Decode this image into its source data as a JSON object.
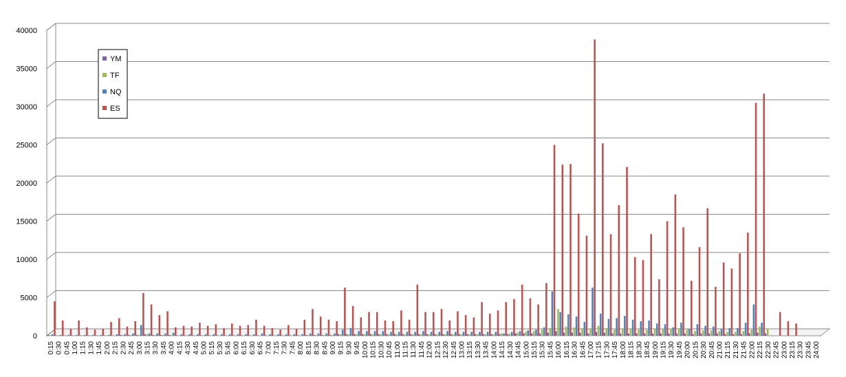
{
  "chart_data": {
    "type": "bar",
    "categories": [
      "0:15",
      "0:30",
      "0:45",
      "1:00",
      "1:15",
      "1:30",
      "1:45",
      "2:00",
      "2:15",
      "2:30",
      "2:45",
      "3:00",
      "3:15",
      "3:30",
      "3:45",
      "4:00",
      "4:15",
      "4:30",
      "4:45",
      "5:00",
      "5:15",
      "5:30",
      "5:45",
      "6:00",
      "6:15",
      "6:30",
      "6:45",
      "7:00",
      "7:15",
      "7:30",
      "7:45",
      "8:00",
      "8:15",
      "8:30",
      "8:45",
      "9:00",
      "9:15",
      "9:30",
      "9:45",
      "10:00",
      "10:15",
      "10:30",
      "10:45",
      "11:00",
      "11:15",
      "11:30",
      "11:45",
      "12:00",
      "12:15",
      "12:30",
      "12:45",
      "13:00",
      "13:15",
      "13:30",
      "13:45",
      "14:00",
      "14:15",
      "14:30",
      "14:45",
      "15:00",
      "15:15",
      "15:30",
      "15:45",
      "16:00",
      "16:15",
      "16:30",
      "16:45",
      "17:00",
      "17:15",
      "17:30",
      "17:45",
      "18:00",
      "18:15",
      "18:30",
      "18:45",
      "19:00",
      "19:15",
      "19:30",
      "19:45",
      "20:00",
      "20:15",
      "20:30",
      "20:45",
      "21:00",
      "21:15",
      "21:30",
      "21:45",
      "22:00",
      "22:15",
      "22:30",
      "22:45",
      "23:00",
      "23:15",
      "23:30",
      "23:45",
      "24:00"
    ],
    "series": [
      {
        "name": "YM",
        "color": "#8064a2",
        "values": [
          100,
          50,
          50,
          50,
          50,
          50,
          50,
          50,
          50,
          100,
          100,
          100,
          200,
          100,
          100,
          100,
          50,
          50,
          50,
          50,
          50,
          50,
          50,
          50,
          50,
          50,
          50,
          50,
          50,
          50,
          50,
          50,
          100,
          100,
          100,
          100,
          200,
          200,
          200,
          200,
          200,
          200,
          200,
          200,
          200,
          200,
          200,
          200,
          200,
          200,
          200,
          200,
          200,
          200,
          200,
          200,
          200,
          200,
          300,
          300,
          300,
          300,
          400,
          600,
          400,
          400,
          400,
          300,
          500,
          400,
          300,
          300,
          300,
          300,
          300,
          300,
          300,
          300,
          300,
          300,
          200,
          300,
          300,
          300,
          200,
          200,
          200,
          300,
          400,
          300,
          0,
          0,
          0,
          0,
          0,
          0
        ]
      },
      {
        "name": "TF",
        "color": "#9bbb59",
        "values": [
          100,
          50,
          50,
          50,
          50,
          50,
          50,
          50,
          50,
          100,
          100,
          100,
          200,
          100,
          100,
          100,
          50,
          50,
          50,
          50,
          50,
          50,
          50,
          50,
          50,
          50,
          50,
          50,
          50,
          50,
          50,
          50,
          100,
          100,
          100,
          100,
          200,
          200,
          200,
          200,
          200,
          200,
          200,
          200,
          200,
          200,
          200,
          200,
          200,
          200,
          200,
          200,
          200,
          200,
          200,
          200,
          300,
          300,
          400,
          500,
          600,
          800,
          1000,
          3500,
          1200,
          1100,
          1000,
          900,
          1300,
          1000,
          800,
          900,
          900,
          800,
          800,
          900,
          900,
          900,
          1000,
          800,
          600,
          700,
          700,
          600,
          500,
          500,
          600,
          800,
          1200,
          900,
          0,
          0,
          0,
          0,
          0,
          0
        ]
      },
      {
        "name": "NQ",
        "color": "#4f81bd",
        "values": [
          200,
          100,
          100,
          100,
          100,
          100,
          100,
          100,
          200,
          200,
          300,
          1400,
          300,
          300,
          300,
          400,
          200,
          200,
          200,
          200,
          200,
          200,
          200,
          200,
          200,
          200,
          300,
          200,
          200,
          200,
          200,
          200,
          300,
          300,
          300,
          300,
          800,
          1000,
          600,
          600,
          600,
          600,
          500,
          500,
          500,
          500,
          600,
          500,
          500,
          600,
          500,
          500,
          500,
          500,
          500,
          500,
          300,
          500,
          600,
          700,
          800,
          1100,
          5800,
          3100,
          2800,
          2500,
          1800,
          6300,
          2900,
          2200,
          2300,
          2600,
          2100,
          1900,
          2000,
          1600,
          1500,
          1100,
          1700,
          900,
          1500,
          1300,
          1200,
          900,
          1000,
          1000,
          1700,
          4100,
          1700,
          0,
          0,
          0,
          0,
          0,
          0,
          0
        ]
      },
      {
        "name": "ES",
        "color": "#c0504d",
        "values": [
          4500,
          2000,
          900,
          2000,
          1100,
          800,
          900,
          1800,
          2300,
          1200,
          1900,
          5600,
          4100,
          2700,
          3200,
          1100,
          1300,
          1200,
          1700,
          1300,
          1500,
          1000,
          1600,
          1300,
          1400,
          2100,
          1300,
          1000,
          800,
          1400,
          900,
          2100,
          3500,
          2500,
          2100,
          1900,
          6300,
          3900,
          2400,
          3100,
          3100,
          2000,
          1900,
          3300,
          2100,
          6700,
          3100,
          3100,
          3500,
          2000,
          3200,
          2700,
          2400,
          4400,
          2900,
          3300,
          4400,
          4800,
          6700,
          4900,
          4100,
          6900,
          25000,
          22400,
          22500,
          16000,
          13100,
          38800,
          25200,
          13300,
          17100,
          22100,
          10300,
          9900,
          13300,
          7400,
          15000,
          18500,
          14200,
          7200,
          11600,
          16700,
          6400,
          9600,
          8800,
          10800,
          13500,
          30500,
          31700,
          0,
          3100,
          1900,
          1600,
          0,
          0,
          0
        ]
      }
    ],
    "ylim": [
      0,
      40000
    ],
    "yticks": [
      0,
      5000,
      10000,
      15000,
      20000,
      25000,
      30000,
      35000,
      40000
    ],
    "grid": true,
    "legend": "top-left"
  }
}
